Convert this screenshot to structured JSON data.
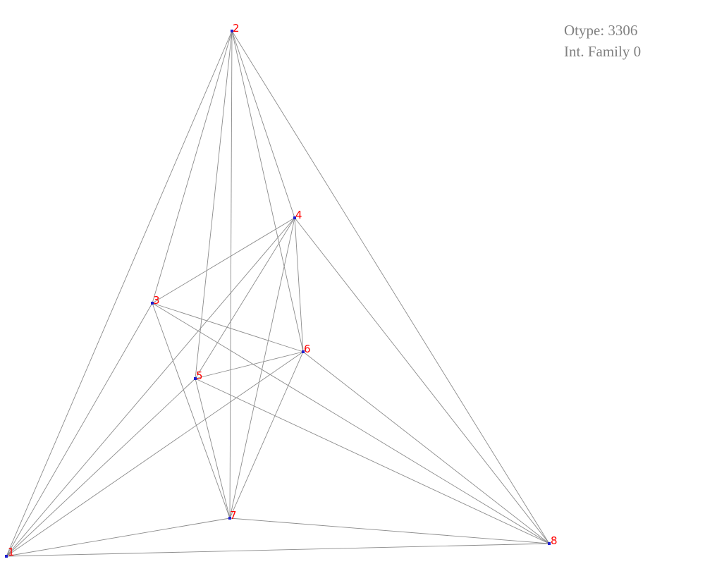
{
  "info": {
    "otype_line": "Otype: 3306",
    "family_line": "Int. Family 0"
  },
  "graph": {
    "nodes": [
      {
        "id": 1,
        "label": "1"
      },
      {
        "id": 2,
        "label": "2"
      },
      {
        "id": 3,
        "label": "3"
      },
      {
        "id": 4,
        "label": "4"
      },
      {
        "id": 5,
        "label": "5"
      },
      {
        "id": 6,
        "label": "6"
      },
      {
        "id": 7,
        "label": "7"
      },
      {
        "id": 8,
        "label": "8"
      }
    ],
    "edges": [
      [
        1,
        2
      ],
      [
        1,
        3
      ],
      [
        1,
        4
      ],
      [
        1,
        5
      ],
      [
        1,
        6
      ],
      [
        1,
        7
      ],
      [
        1,
        8
      ],
      [
        2,
        3
      ],
      [
        2,
        4
      ],
      [
        2,
        5
      ],
      [
        2,
        6
      ],
      [
        2,
        7
      ],
      [
        2,
        8
      ],
      [
        3,
        4
      ],
      [
        3,
        6
      ],
      [
        3,
        7
      ],
      [
        3,
        8
      ],
      [
        4,
        5
      ],
      [
        4,
        6
      ],
      [
        4,
        7
      ],
      [
        4,
        8
      ],
      [
        5,
        6
      ],
      [
        5,
        7
      ],
      [
        5,
        8
      ],
      [
        6,
        7
      ],
      [
        6,
        8
      ],
      [
        7,
        8
      ]
    ],
    "colors": {
      "edge": "#8c8c8c",
      "node": "#1f1fd0",
      "label": "#ff0000",
      "info_text": "#808080"
    }
  }
}
